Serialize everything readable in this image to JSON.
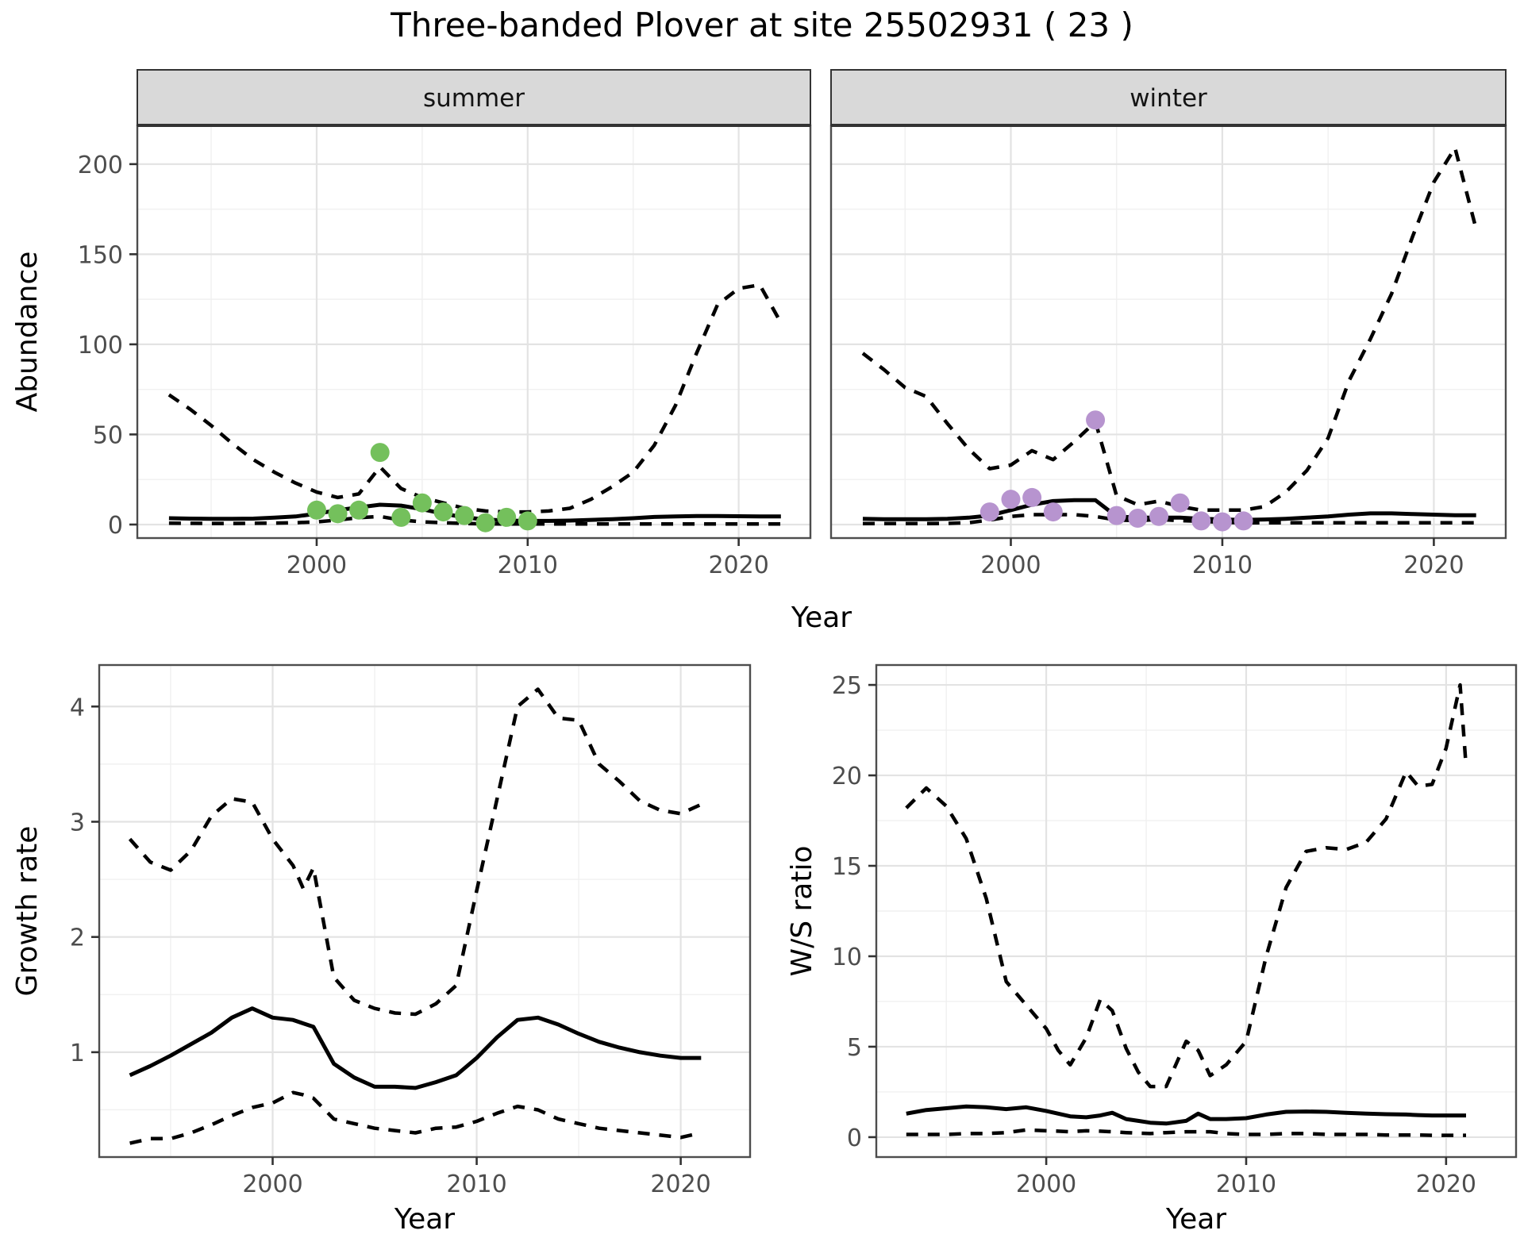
{
  "page": {
    "title": "Three-banded Plover at site 25502931 ( 23 )"
  },
  "colors": {
    "summer_points": "#74c05c",
    "winter_points": "#b794cf",
    "line": "#000000",
    "strip_bg": "#d9d9d9",
    "strip_border": "#333333",
    "panel_border": "#4d4d4d",
    "grid_major": "#e3e3e3",
    "grid_minor": "#f0f0f0",
    "tick_mark": "#333333",
    "tick_text": "#4d4d4d"
  },
  "top_row": {
    "ylabel": "Abundance",
    "xlabel": "Year"
  },
  "chart_data": [
    {
      "id": "abundance-summer",
      "type": "line",
      "facet_label": "summer",
      "ylabel": "Abundance",
      "xlabel": "Year",
      "xlim": [
        1991.5,
        2023.4
      ],
      "ylim": [
        -7.5,
        221.5
      ],
      "x_ticks": [
        2000,
        2010,
        2020
      ],
      "x_minor": [
        1995,
        2005,
        2015
      ],
      "y_ticks": [
        0,
        50,
        100,
        150,
        200
      ],
      "y_minor": [
        25,
        75,
        125,
        175
      ],
      "grid": true,
      "legend": "none",
      "x": [
        1993,
        1994,
        1995,
        1996,
        1997,
        1998,
        1999,
        2000,
        2001,
        2002,
        2003,
        2004,
        2005,
        2006,
        2007,
        2008,
        2009,
        2010,
        2011,
        2012,
        2013,
        2014,
        2015,
        2016,
        2017,
        2018,
        2019,
        2020,
        2021,
        2022
      ],
      "series": [
        {
          "name": "upper-ci",
          "style": "dashed",
          "values": [
            72,
            64,
            55,
            45,
            36,
            29,
            23,
            18,
            15,
            17,
            32,
            20,
            15,
            12,
            9,
            7.5,
            7,
            7,
            7.5,
            9,
            14,
            21,
            29,
            44,
            66,
            95,
            122,
            131,
            133,
            112
          ]
        },
        {
          "name": "model-fit",
          "style": "solid",
          "values": [
            3.5,
            3.3,
            3.2,
            3.2,
            3.3,
            3.8,
            4.5,
            6,
            8,
            9.5,
            11,
            10.5,
            8.5,
            6,
            4,
            2.8,
            2.2,
            2,
            2,
            2.2,
            2.6,
            3,
            3.5,
            4.2,
            4.5,
            4.7,
            4.7,
            4.6,
            4.5,
            4.5
          ]
        },
        {
          "name": "lower-ci",
          "style": "dashed",
          "values": [
            0.8,
            0.7,
            0.6,
            0.6,
            0.7,
            0.8,
            1,
            1.5,
            2.5,
            3.8,
            4.5,
            2.5,
            1.5,
            1,
            0.6,
            0.4,
            0.3,
            0.3,
            0.3,
            0.3,
            0.3,
            0.3,
            0.3,
            0.3,
            0.3,
            0.3,
            0.3,
            0.3,
            0.3,
            0.3
          ]
        }
      ],
      "points": {
        "name": "observed-counts-summer",
        "color": "#74c05c",
        "x": [
          2000,
          2001,
          2002,
          2003,
          2004,
          2005,
          2006,
          2007,
          2008,
          2009,
          2010
        ],
        "y": [
          8,
          6,
          8,
          40,
          4,
          12,
          7,
          5,
          1,
          4,
          2
        ]
      }
    },
    {
      "id": "abundance-winter",
      "type": "line",
      "facet_label": "winter",
      "ylabel": "Abundance",
      "xlabel": "Year",
      "xlim": [
        1991.5,
        2023.4
      ],
      "ylim": [
        -7.5,
        221.5
      ],
      "x_ticks": [
        2000,
        2010,
        2020
      ],
      "x_minor": [
        1995,
        2005,
        2015
      ],
      "y_ticks": [
        0,
        50,
        100,
        150,
        200
      ],
      "y_minor": [
        25,
        75,
        125,
        175
      ],
      "grid": true,
      "legend": "none",
      "x": [
        1993,
        1994,
        1995,
        1996,
        1997,
        1998,
        1999,
        2000,
        2001,
        2002,
        2003,
        2004,
        2005,
        2006,
        2007,
        2008,
        2009,
        2010,
        2011,
        2012,
        2013,
        2014,
        2015,
        2016,
        2017,
        2018,
        2019,
        2020,
        2021,
        2022
      ],
      "series": [
        {
          "name": "upper-ci",
          "style": "dashed",
          "values": [
            95,
            86,
            76,
            71,
            56,
            42,
            31,
            33,
            41,
            36,
            46,
            57,
            16,
            11,
            13,
            10,
            8,
            8,
            8,
            10,
            18,
            30,
            48,
            80,
            103,
            128,
            160,
            190,
            209,
            164
          ]
        },
        {
          "name": "model-fit",
          "style": "solid",
          "values": [
            3.2,
            3,
            3,
            3,
            3.2,
            3.8,
            5,
            8,
            11,
            13,
            13.5,
            13.5,
            4.5,
            3.8,
            3.8,
            3.8,
            3.2,
            2.8,
            2.6,
            2.8,
            3.2,
            3.8,
            4.5,
            5.5,
            6.2,
            6.2,
            5.8,
            5.5,
            5.2,
            5.2
          ]
        },
        {
          "name": "lower-ci",
          "style": "dashed",
          "values": [
            0.5,
            0.5,
            0.5,
            0.5,
            0.6,
            1,
            2.5,
            4.5,
            5.5,
            5.5,
            5.5,
            4.5,
            2.5,
            2.2,
            2.8,
            2.2,
            1.8,
            1.2,
            1,
            1,
            1,
            1,
            1,
            1,
            1,
            1,
            1,
            1,
            1,
            1
          ]
        }
      ],
      "points": {
        "name": "observed-counts-winter",
        "color": "#b794cf",
        "x": [
          1999,
          2000,
          2001,
          2002,
          2004,
          2005,
          2006,
          2007,
          2008,
          2009,
          2010,
          2011
        ],
        "y": [
          7,
          14,
          15,
          7,
          58,
          5,
          3.5,
          4.5,
          12,
          2,
          1.5,
          2
        ]
      }
    },
    {
      "id": "growth-rate",
      "type": "line",
      "facet_label": "",
      "ylabel": "Growth rate",
      "xlabel": "Year",
      "xlim": [
        1991.5,
        2023.4
      ],
      "ylim": [
        0.09,
        4.36
      ],
      "x_ticks": [
        2000,
        2010,
        2020
      ],
      "x_minor": [
        1995,
        2005,
        2015
      ],
      "y_ticks": [
        1,
        2,
        3,
        4
      ],
      "y_minor": [
        0.5,
        1.5,
        2.5,
        3.5
      ],
      "grid": true,
      "legend": "none",
      "x": [
        1993,
        1994,
        1995,
        1996,
        1997,
        1998,
        1999,
        2000,
        2001,
        2001.5,
        2002,
        2003,
        2004,
        2005,
        2006,
        2007,
        2008,
        2009,
        2010,
        2011,
        2012,
        2013,
        2014,
        2015,
        2016,
        2017,
        2018,
        2019,
        2020,
        2021
      ],
      "series": [
        {
          "name": "upper-ci",
          "style": "dashed",
          "values": [
            2.85,
            2.65,
            2.58,
            2.75,
            3.05,
            3.2,
            3.17,
            2.85,
            2.62,
            2.42,
            2.6,
            1.65,
            1.45,
            1.38,
            1.34,
            1.33,
            1.42,
            1.58,
            2.4,
            3.2,
            4.0,
            4.15,
            3.9,
            3.88,
            3.5,
            3.35,
            3.18,
            3.1,
            3.07,
            3.15
          ]
        },
        {
          "name": "model-fit",
          "style": "solid",
          "values": [
            0.8,
            0.88,
            0.97,
            1.07,
            1.17,
            1.3,
            1.38,
            1.3,
            1.28,
            1.25,
            1.22,
            0.9,
            0.78,
            0.7,
            0.7,
            0.69,
            0.74,
            0.8,
            0.95,
            1.13,
            1.28,
            1.3,
            1.24,
            1.16,
            1.09,
            1.04,
            1.0,
            0.97,
            0.95,
            0.95
          ]
        },
        {
          "name": "lower-ci",
          "style": "dashed",
          "values": [
            0.21,
            0.25,
            0.25,
            0.3,
            0.37,
            0.45,
            0.52,
            0.56,
            0.65,
            0.63,
            0.6,
            0.42,
            0.38,
            0.34,
            0.32,
            0.3,
            0.34,
            0.35,
            0.4,
            0.47,
            0.53,
            0.5,
            0.42,
            0.38,
            0.34,
            0.32,
            0.3,
            0.28,
            0.26,
            0.3
          ]
        }
      ],
      "points": null
    },
    {
      "id": "ws-ratio",
      "type": "line",
      "facet_label": "",
      "ylabel": "W/S ratio",
      "xlabel": "Year",
      "xlim": [
        1991.5,
        2023.5
      ],
      "ylim": [
        -1.1,
        26.1
      ],
      "x_ticks": [
        2000,
        2010,
        2020
      ],
      "x_minor": [
        1995,
        2005,
        2015
      ],
      "y_ticks": [
        0,
        5,
        10,
        15,
        20,
        25
      ],
      "y_minor": [
        2.5,
        7.5,
        12.5,
        17.5,
        22.5
      ],
      "grid": true,
      "legend": "none",
      "x": [
        1993,
        1994,
        1995,
        1996,
        1997,
        1998,
        1999,
        2000,
        2000.6,
        2001.2,
        2002,
        2002.7,
        2003.3,
        2004,
        2004.6,
        2005.2,
        2006,
        2007,
        2007.6,
        2008.2,
        2009,
        2010,
        2011,
        2012,
        2013,
        2014,
        2015,
        2016,
        2017,
        2018,
        2018.6,
        2019.3,
        2020,
        2020.7,
        2021
      ],
      "series": [
        {
          "name": "upper-ci",
          "style": "dashed",
          "values": [
            18.2,
            19.3,
            18.3,
            16.5,
            13.2,
            8.6,
            7.3,
            6.0,
            4.8,
            4.0,
            5.5,
            7.6,
            7.0,
            4.9,
            3.6,
            2.8,
            2.8,
            5.3,
            4.8,
            3.4,
            4.0,
            5.3,
            10.0,
            13.8,
            15.8,
            16.0,
            15.9,
            16.3,
            17.6,
            20.2,
            19.4,
            19.5,
            21.5,
            25.0,
            20.5
          ]
        },
        {
          "name": "model-fit",
          "style": "solid",
          "values": [
            1.3,
            1.5,
            1.6,
            1.7,
            1.65,
            1.55,
            1.65,
            1.45,
            1.3,
            1.15,
            1.1,
            1.2,
            1.35,
            1.0,
            0.9,
            0.8,
            0.75,
            0.9,
            1.3,
            1.0,
            1.0,
            1.05,
            1.25,
            1.4,
            1.42,
            1.4,
            1.35,
            1.3,
            1.27,
            1.25,
            1.22,
            1.2,
            1.2,
            1.2,
            1.2
          ]
        },
        {
          "name": "lower-ci",
          "style": "dashed",
          "values": [
            0.15,
            0.15,
            0.15,
            0.2,
            0.2,
            0.25,
            0.4,
            0.35,
            0.33,
            0.3,
            0.35,
            0.33,
            0.3,
            0.25,
            0.22,
            0.2,
            0.25,
            0.3,
            0.3,
            0.3,
            0.2,
            0.15,
            0.15,
            0.2,
            0.2,
            0.15,
            0.15,
            0.15,
            0.12,
            0.12,
            0.12,
            0.1,
            0.1,
            0.1,
            0.1
          ]
        }
      ],
      "points": null
    }
  ]
}
